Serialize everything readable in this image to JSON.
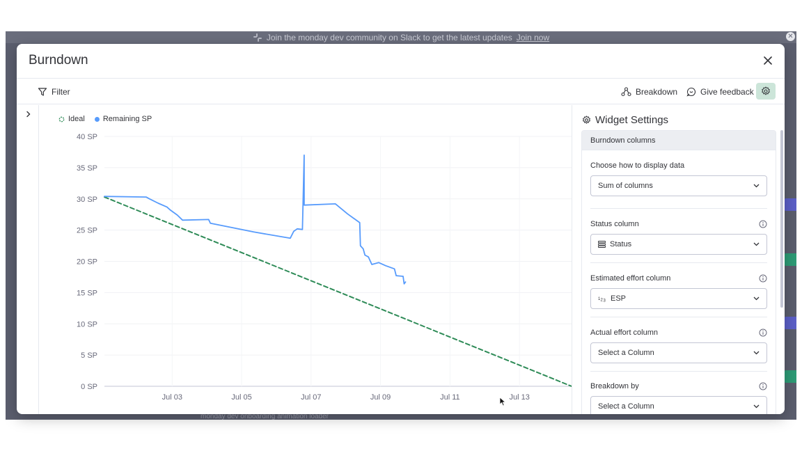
{
  "banner": {
    "text": "Join the monday dev community on Slack to get the latest updates",
    "link": "Join now"
  },
  "background": {
    "bottom_text": "monday dev onboarding animation loader"
  },
  "modal": {
    "title": "Burndown"
  },
  "toolbar": {
    "filter_label": "Filter",
    "breakdown_label": "Breakdown",
    "feedback_label": "Give feedback"
  },
  "chart_data": {
    "type": "line",
    "legend": [
      "Ideal",
      "Remaining SP"
    ],
    "ylim": [
      0,
      40
    ],
    "y_ticks": [
      "40 SP",
      "35 SP",
      "30 SP",
      "25 SP",
      "20 SP",
      "15 SP",
      "10 SP",
      "5 SP",
      "0 SP"
    ],
    "x_ticks": [
      "Jul 03",
      "Jul 05",
      "Jul 07",
      "Jul 09",
      "Jul 11",
      "Jul 13"
    ],
    "x_range_days": [
      1.05,
      14.5
    ],
    "series": [
      {
        "name": "Ideal",
        "color": "#2e8b57",
        "style": "dashed",
        "points": [
          [
            1.05,
            30.3
          ],
          [
            14.5,
            0
          ]
        ]
      },
      {
        "name": "Remaining SP",
        "color": "#579bfc",
        "style": "solid",
        "points": [
          [
            1.05,
            30.4
          ],
          [
            2.25,
            30.3
          ],
          [
            2.35,
            30.0
          ],
          [
            2.6,
            29.3
          ],
          [
            2.85,
            28.7
          ],
          [
            2.95,
            28.2
          ],
          [
            3.15,
            27.4
          ],
          [
            3.3,
            26.6
          ],
          [
            4.05,
            26.7
          ],
          [
            4.1,
            26.1
          ],
          [
            5.35,
            24.7
          ],
          [
            6.4,
            23.7
          ],
          [
            6.5,
            24.8
          ],
          [
            6.6,
            25.2
          ],
          [
            6.75,
            25.1
          ],
          [
            6.8,
            37.0
          ],
          [
            6.8,
            29.0
          ],
          [
            7.7,
            29.2
          ],
          [
            8.05,
            27.6
          ],
          [
            8.4,
            26.2
          ],
          [
            8.42,
            22.5
          ],
          [
            8.5,
            22.0
          ],
          [
            8.55,
            21.0
          ],
          [
            8.65,
            20.7
          ],
          [
            8.75,
            19.5
          ],
          [
            8.95,
            19.8
          ],
          [
            9.15,
            19.3
          ],
          [
            9.4,
            18.8
          ],
          [
            9.45,
            17.7
          ],
          [
            9.65,
            17.6
          ],
          [
            9.68,
            16.4
          ],
          [
            9.72,
            16.7
          ]
        ]
      }
    ]
  },
  "settings": {
    "title": "Widget Settings",
    "section_title": "Burndown columns",
    "display_label": "Choose how to display data",
    "display_value": "Sum of columns",
    "status_label": "Status column",
    "status_value": "Status",
    "estimated_label": "Estimated effort column",
    "estimated_value": "ESP",
    "actual_label": "Actual effort column",
    "actual_value": "Select a Column",
    "breakdown_label": "Breakdown by",
    "breakdown_value": "Select a Column"
  },
  "colors": {
    "accent": "#579bfc",
    "ideal": "#2e8b57",
    "settings_active": "#cce5d9"
  }
}
